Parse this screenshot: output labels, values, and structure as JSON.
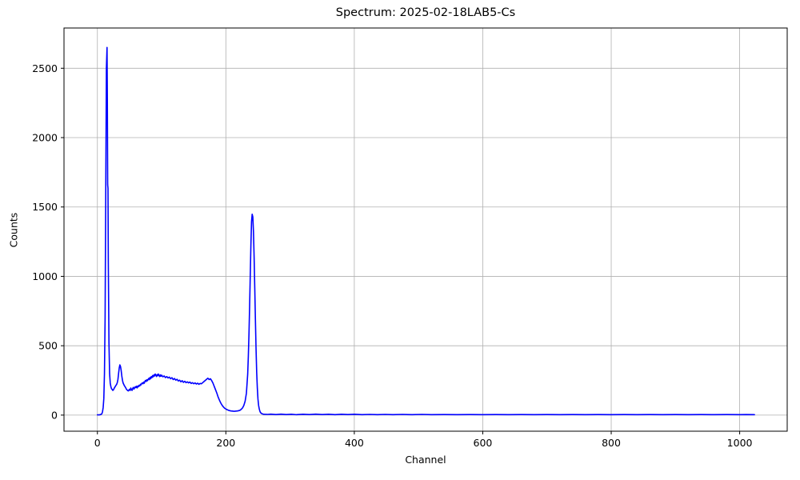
{
  "chart_data": {
    "type": "line",
    "title": "Spectrum: 2025-02-18LAB5-Cs",
    "xlabel": "Channel",
    "ylabel": "Counts",
    "legend": null,
    "grid": true,
    "grid_color": "#b0b0b0",
    "line_color": "#0000ff",
    "spine_color": "#000000",
    "background_color": "#ffffff",
    "xlim": [
      -52,
      1074
    ],
    "ylim": [
      -116,
      2790
    ],
    "xticks": [
      0,
      200,
      400,
      600,
      800,
      1000
    ],
    "yticks": [
      0,
      500,
      1000,
      1500,
      2000,
      2500
    ],
    "points": [
      [
        0,
        2
      ],
      [
        3,
        2
      ],
      [
        5,
        4
      ],
      [
        7,
        10
      ],
      [
        8,
        25
      ],
      [
        9,
        55
      ],
      [
        10,
        120
      ],
      [
        11,
        300
      ],
      [
        12,
        700
      ],
      [
        13,
        1600
      ],
      [
        14,
        2500
      ],
      [
        15,
        2650
      ],
      [
        15.5,
        2280
      ],
      [
        16,
        1660
      ],
      [
        16.5,
        1635
      ],
      [
        17,
        1100
      ],
      [
        18,
        520
      ],
      [
        19,
        300
      ],
      [
        20,
        230
      ],
      [
        21,
        205
      ],
      [
        22,
        190
      ],
      [
        23,
        185
      ],
      [
        24,
        178
      ],
      [
        25,
        182
      ],
      [
        26,
        192
      ],
      [
        27,
        200
      ],
      [
        28,
        208
      ],
      [
        29,
        215
      ],
      [
        30,
        222
      ],
      [
        31,
        235
      ],
      [
        32,
        258
      ],
      [
        33,
        300
      ],
      [
        34,
        340
      ],
      [
        35,
        362
      ],
      [
        36,
        350
      ],
      [
        37,
        322
      ],
      [
        38,
        282
      ],
      [
        39,
        252
      ],
      [
        40,
        232
      ],
      [
        41,
        222
      ],
      [
        42,
        212
      ],
      [
        43,
        205
      ],
      [
        44,
        198
      ],
      [
        45,
        188
      ],
      [
        46,
        182
      ],
      [
        47,
        178
      ],
      [
        48,
        174
      ],
      [
        49,
        180
      ],
      [
        50,
        186
      ],
      [
        51,
        178
      ],
      [
        52,
        195
      ],
      [
        53,
        185
      ],
      [
        54,
        178
      ],
      [
        55,
        192
      ],
      [
        56,
        200
      ],
      [
        57,
        188
      ],
      [
        58,
        196
      ],
      [
        59,
        205
      ],
      [
        60,
        198
      ],
      [
        61,
        208
      ],
      [
        62,
        196
      ],
      [
        63,
        210
      ],
      [
        64,
        205
      ],
      [
        65,
        215
      ],
      [
        66,
        210
      ],
      [
        67,
        222
      ],
      [
        68,
        218
      ],
      [
        69,
        228
      ],
      [
        70,
        232
      ],
      [
        71,
        226
      ],
      [
        72,
        238
      ],
      [
        73,
        230
      ],
      [
        74,
        244
      ],
      [
        75,
        250
      ],
      [
        76,
        242
      ],
      [
        77,
        255
      ],
      [
        78,
        248
      ],
      [
        79,
        258
      ],
      [
        80,
        265
      ],
      [
        81,
        256
      ],
      [
        82,
        272
      ],
      [
        83,
        262
      ],
      [
        84,
        278
      ],
      [
        85,
        270
      ],
      [
        86,
        285
      ],
      [
        87,
        276
      ],
      [
        88,
        290
      ],
      [
        89,
        282
      ],
      [
        90,
        296
      ],
      [
        91,
        288
      ],
      [
        92,
        278
      ],
      [
        93,
        292
      ],
      [
        94,
        284
      ],
      [
        95,
        296
      ],
      [
        96,
        286
      ],
      [
        97,
        278
      ],
      [
        98,
        290
      ],
      [
        99,
        280
      ],
      [
        100,
        288
      ],
      [
        102,
        276
      ],
      [
        104,
        282
      ],
      [
        106,
        270
      ],
      [
        108,
        278
      ],
      [
        110,
        268
      ],
      [
        112,
        274
      ],
      [
        114,
        262
      ],
      [
        116,
        270
      ],
      [
        118,
        256
      ],
      [
        120,
        264
      ],
      [
        122,
        252
      ],
      [
        124,
        258
      ],
      [
        126,
        246
      ],
      [
        128,
        252
      ],
      [
        130,
        240
      ],
      [
        132,
        248
      ],
      [
        134,
        236
      ],
      [
        136,
        244
      ],
      [
        138,
        234
      ],
      [
        140,
        240
      ],
      [
        142,
        232
      ],
      [
        144,
        238
      ],
      [
        146,
        228
      ],
      [
        148,
        234
      ],
      [
        150,
        226
      ],
      [
        152,
        232
      ],
      [
        154,
        224
      ],
      [
        156,
        230
      ],
      [
        158,
        222
      ],
      [
        160,
        228
      ],
      [
        162,
        226
      ],
      [
        164,
        234
      ],
      [
        166,
        242
      ],
      [
        168,
        250
      ],
      [
        170,
        258
      ],
      [
        172,
        266
      ],
      [
        174,
        256
      ],
      [
        176,
        262
      ],
      [
        178,
        248
      ],
      [
        180,
        230
      ],
      [
        182,
        206
      ],
      [
        184,
        182
      ],
      [
        186,
        158
      ],
      [
        188,
        130
      ],
      [
        190,
        108
      ],
      [
        192,
        88
      ],
      [
        194,
        72
      ],
      [
        196,
        60
      ],
      [
        198,
        50
      ],
      [
        200,
        44
      ],
      [
        202,
        39
      ],
      [
        204,
        35
      ],
      [
        206,
        32
      ],
      [
        208,
        30
      ],
      [
        210,
        29
      ],
      [
        212,
        28
      ],
      [
        214,
        28
      ],
      [
        216,
        29
      ],
      [
        218,
        30
      ],
      [
        220,
        32
      ],
      [
        222,
        35
      ],
      [
        224,
        42
      ],
      [
        226,
        52
      ],
      [
        228,
        70
      ],
      [
        230,
        100
      ],
      [
        232,
        158
      ],
      [
        234,
        295
      ],
      [
        235,
        425
      ],
      [
        236,
        585
      ],
      [
        237,
        785
      ],
      [
        238,
        1005
      ],
      [
        239,
        1225
      ],
      [
        240,
        1395
      ],
      [
        241,
        1448
      ],
      [
        242,
        1428
      ],
      [
        243,
        1320
      ],
      [
        244,
        1140
      ],
      [
        245,
        920
      ],
      [
        246,
        690
      ],
      [
        247,
        480
      ],
      [
        248,
        310
      ],
      [
        249,
        195
      ],
      [
        250,
        115
      ],
      [
        251,
        70
      ],
      [
        252,
        45
      ],
      [
        253,
        28
      ],
      [
        254,
        18
      ],
      [
        256,
        10
      ],
      [
        258,
        7
      ],
      [
        260,
        6
      ],
      [
        265,
        5
      ],
      [
        270,
        7
      ],
      [
        278,
        4
      ],
      [
        286,
        7
      ],
      [
        294,
        4
      ],
      [
        302,
        6
      ],
      [
        310,
        3
      ],
      [
        320,
        6
      ],
      [
        330,
        4
      ],
      [
        340,
        7
      ],
      [
        350,
        4
      ],
      [
        360,
        6
      ],
      [
        370,
        3
      ],
      [
        380,
        6
      ],
      [
        390,
        4
      ],
      [
        400,
        6
      ],
      [
        412,
        3
      ],
      [
        424,
        5
      ],
      [
        436,
        3
      ],
      [
        448,
        5
      ],
      [
        460,
        3
      ],
      [
        475,
        5
      ],
      [
        490,
        3
      ],
      [
        505,
        5
      ],
      [
        520,
        3
      ],
      [
        540,
        4
      ],
      [
        560,
        3
      ],
      [
        580,
        4
      ],
      [
        600,
        3
      ],
      [
        620,
        4
      ],
      [
        640,
        3
      ],
      [
        660,
        4
      ],
      [
        680,
        3
      ],
      [
        700,
        4
      ],
      [
        720,
        3
      ],
      [
        740,
        4
      ],
      [
        760,
        3
      ],
      [
        780,
        4
      ],
      [
        800,
        3
      ],
      [
        820,
        4
      ],
      [
        840,
        3
      ],
      [
        860,
        4
      ],
      [
        880,
        3
      ],
      [
        900,
        4
      ],
      [
        920,
        3
      ],
      [
        940,
        4
      ],
      [
        960,
        3
      ],
      [
        980,
        4
      ],
      [
        1000,
        3
      ],
      [
        1010,
        4
      ],
      [
        1023,
        3
      ]
    ]
  }
}
